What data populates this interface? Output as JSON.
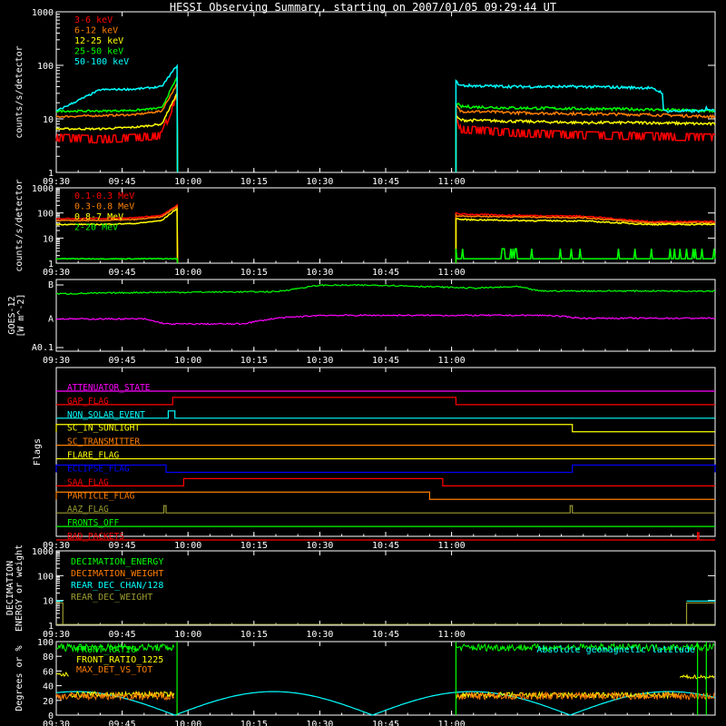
{
  "title": "HESSI Observing Summary, starting on 2007/01/05 09:29:44 UT",
  "colors": {
    "axis": "#ffffff",
    "red": "#ff0000",
    "orange": "#ff7f00",
    "yellow": "#ffff00",
    "green": "#00ff00",
    "cyan": "#00ffff",
    "magenta": "#ff00ff",
    "blue": "#0000ff",
    "darkyellow": "#a0a000",
    "olive": "#9a9a30",
    "lightgreen": "#00ff00"
  },
  "chart_data": [
    {
      "id": "p1",
      "type": "line",
      "ylabel": "counts/s/detector",
      "ylog": true,
      "ylim": [
        1,
        1000
      ],
      "ytick_labels": [
        "1",
        "10",
        "100",
        "1000"
      ],
      "xlim": [
        570,
        720
      ],
      "xtick_labels": [
        "09:30",
        "09:45",
        "10:00",
        "10:15",
        "10:30",
        "10:45",
        "11:00"
      ],
      "legend_position": "top-left",
      "series": [
        {
          "name": "3-6 keV",
          "color": "red",
          "pre": [
            4.5,
            4.2,
            4.5,
            5,
            30
          ],
          "post": [
            14,
            6.5,
            5.5,
            5,
            4.8,
            4.5
          ]
        },
        {
          "name": "6-12 keV",
          "color": "orange",
          "pre": [
            11,
            11.5,
            12,
            14,
            45
          ],
          "post": [
            18,
            14,
            13,
            12.5,
            12,
            11
          ]
        },
        {
          "name": "12-25 keV",
          "color": "yellow",
          "pre": [
            6.5,
            6.5,
            7,
            8,
            30
          ],
          "post": [
            11,
            9.5,
            9,
            8.5,
            8.5,
            8
          ]
        },
        {
          "name": "25-50 keV",
          "color": "green",
          "pre": [
            14,
            14,
            14.5,
            16,
            60
          ],
          "post": [
            20,
            17,
            16,
            15.5,
            15,
            14
          ]
        },
        {
          "name": "50-100 keV",
          "color": "cyan",
          "pre": [
            14,
            35,
            36,
            40,
            100
          ],
          "post": [
            50,
            42,
            40,
            40,
            38,
            14
          ]
        }
      ]
    },
    {
      "id": "p2",
      "type": "line",
      "ylabel": "counts/s/detector",
      "ylog": true,
      "ylim": [
        1,
        1000
      ],
      "ytick_labels": [
        "1",
        "10",
        "100",
        "1000"
      ],
      "xlim": [
        570,
        720
      ],
      "xtick_labels": [
        "09:30",
        "09:45",
        "10:00",
        "10:15",
        "10:30",
        "10:45",
        "11:00"
      ],
      "legend_position": "top-left",
      "series": [
        {
          "name": "0.1-0.3 MeV",
          "color": "red",
          "pre": [
            60,
            60,
            65,
            80,
            200
          ],
          "post": [
            100,
            90,
            80,
            75,
            45,
            45
          ]
        },
        {
          "name": "0.3-0.8 MeV",
          "color": "orange",
          "pre": [
            50,
            50,
            55,
            70,
            180
          ],
          "post": [
            80,
            75,
            70,
            65,
            40,
            40
          ]
        },
        {
          "name": "0.8-7 MeV",
          "color": "yellow",
          "pre": [
            35,
            35,
            38,
            50,
            150
          ],
          "post": [
            60,
            55,
            50,
            48,
            35,
            35
          ]
        },
        {
          "name": "2-20 MeV",
          "color": "green",
          "pre": [
            1.5,
            1.5,
            1.5,
            1.5,
            1.5
          ],
          "post": [
            1.5,
            1.5,
            1.5,
            1.5,
            1.5,
            1.5
          ]
        }
      ]
    },
    {
      "id": "p3",
      "type": "line",
      "ylabel": "GOES-12 [W m^-2]",
      "ytick_labels": [
        "A0.1",
        "A",
        "B"
      ],
      "xlim": [
        570,
        720
      ],
      "xtick_labels": [
        "09:30",
        "09:45",
        "10:00",
        "10:15",
        "10:30",
        "10:45",
        "11:00"
      ],
      "series": [
        {
          "name": "",
          "color": "green",
          "x": [
            570,
            590,
            620,
            630,
            645,
            665,
            675,
            680,
            720
          ],
          "y": [
            0.8,
            0.82,
            0.83,
            0.92,
            0.92,
            0.88,
            0.9,
            0.84,
            0.84
          ]
        },
        {
          "name": "",
          "color": "magenta",
          "x": [
            570,
            590,
            595,
            612,
            620,
            630,
            660,
            682,
            690,
            720
          ],
          "y": [
            0.45,
            0.45,
            0.38,
            0.38,
            0.46,
            0.5,
            0.5,
            0.5,
            0.46,
            0.46
          ]
        }
      ]
    },
    {
      "id": "p4",
      "type": "line",
      "ylabel": "Flags",
      "xlim": [
        570,
        720
      ],
      "xtick_labels": [
        "09:30",
        "09:45",
        "10:00",
        "10:15",
        "10:30",
        "10:45",
        "11:00"
      ],
      "flags": [
        {
          "name": "ATTENUATOR_STATE",
          "color": "magenta",
          "steps": []
        },
        {
          "name": "GAP_FLAG",
          "color": "red",
          "steps": [
            [
              596.5,
              661
            ]
          ]
        },
        {
          "name": "NON_SOLAR_EVENT",
          "color": "cyan",
          "steps": [
            [
              595.5,
              597
            ]
          ]
        },
        {
          "name": "SC_IN_SUNLIGHT",
          "color": "yellow",
          "steps": [
            [
              570,
              687.5
            ]
          ]
        },
        {
          "name": "SC_TRANSMITTER",
          "color": "orange",
          "steps": []
        },
        {
          "name": "FLARE_FLAG",
          "color": "yellow",
          "steps": []
        },
        {
          "name": "ECLIPSE_FLAG",
          "color": "blue",
          "steps": [
            [
              570,
              595
            ],
            [
              687.5,
              720
            ]
          ]
        },
        {
          "name": "SAA_FLAG",
          "color": "red",
          "steps": [
            [
              599,
              658
            ]
          ]
        },
        {
          "name": "PARTICLE_FLAG",
          "color": "orange",
          "steps": [
            [
              570,
              655
            ]
          ]
        },
        {
          "name": "AAZ_FLAG",
          "color": "olive",
          "steps": [
            [
              594.5,
              595
            ],
            [
              687,
              687.5
            ]
          ]
        },
        {
          "name": "FRONTS_OFF",
          "color": "green",
          "steps": []
        },
        {
          "name": "BAD_PACKETS",
          "color": "red",
          "steps": [
            [
              716,
              716.3
            ]
          ]
        }
      ]
    },
    {
      "id": "p5",
      "type": "line",
      "ylabel": "DECIMATION ENERGY or weight",
      "ylog": true,
      "ylim": [
        1,
        1000
      ],
      "ytick_labels": [
        "1",
        "10",
        "100",
        "1000"
      ],
      "xlim": [
        570,
        720
      ],
      "xtick_labels": [
        "09:30",
        "09:45",
        "10:00",
        "10:15",
        "10:30",
        "10:45",
        "11:00"
      ],
      "series": [
        {
          "name": "DECIMATION_ENERGY",
          "color": "green"
        },
        {
          "name": "DECIMATION_WEIGHT",
          "color": "orange"
        },
        {
          "name": "REAR_DEC_CHAN/128",
          "color": "cyan"
        },
        {
          "name": "REAR_DEC_WEIGHT",
          "color": "olive"
        }
      ]
    },
    {
      "id": "p6",
      "type": "line",
      "ylabel": "Degrees or %",
      "ylim": [
        0,
        100
      ],
      "ytick_labels": [
        "0",
        "20",
        "40",
        "60",
        "80",
        "100"
      ],
      "xlim": [
        570,
        720
      ],
      "xtick_labels": [
        "09:30",
        "09:45",
        "10:00",
        "10:15",
        "10:30",
        "10:45",
        "11:00"
      ],
      "series": [
        {
          "name": "FRONT_RATIO",
          "color": "green"
        },
        {
          "name": "FRONT_RATIO_1225",
          "color": "yellow"
        },
        {
          "name": "MAX_DET_VS_TOT",
          "color": "orange"
        },
        {
          "name": "Absolute geomagnetic latitude",
          "color": "cyan"
        }
      ]
    }
  ]
}
